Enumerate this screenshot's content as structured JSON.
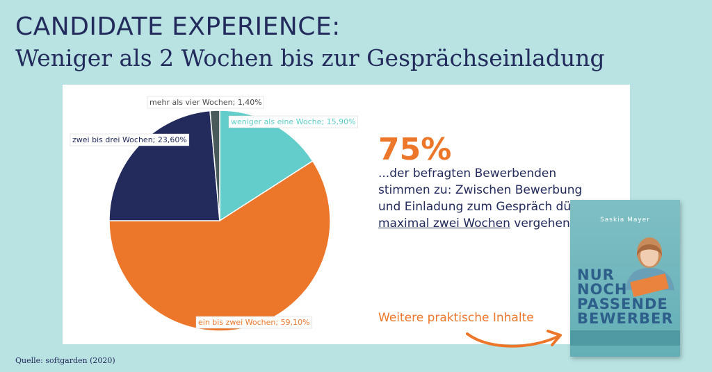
{
  "header": {
    "title": "CANDIDATE EXPERIENCE:",
    "subtitle": "Weniger als 2 Wochen bis zur Gesprächseinladung"
  },
  "chart_data": {
    "type": "pie",
    "title": "",
    "slices": [
      {
        "label": "weniger als eine Woche; 15,90%",
        "value": 15.9,
        "color": "#62cdca"
      },
      {
        "label": "ein bis zwei Wochen; 59,10%",
        "value": 59.1,
        "color": "#ec772a"
      },
      {
        "label": "zwei bis drei Wochen; 23,60%",
        "value": 23.6,
        "color": "#232b5c"
      },
      {
        "label": "mehr als vier Wochen; 1,40%",
        "value": 1.4,
        "color": "#4a5a5a"
      }
    ]
  },
  "highlight": {
    "stat": "75%",
    "text_before": "...der befragten Bewerbenden stimmen zu: Zwischen Bewerbung und Einladung zum Gespräch dürfen ",
    "text_underlined": "maximal zwei Wochen",
    "text_after": " vergehen."
  },
  "promo": {
    "link_label": "Weitere praktische Inhalte",
    "book_author": "Saskia Mayer",
    "book_title_lines": [
      "NUR",
      "NOCH",
      "PASSENDE",
      "BEWERBER"
    ],
    "arrow_color": "#ec772a"
  },
  "footer": {
    "source": "Quelle: softgarden (2020)"
  }
}
